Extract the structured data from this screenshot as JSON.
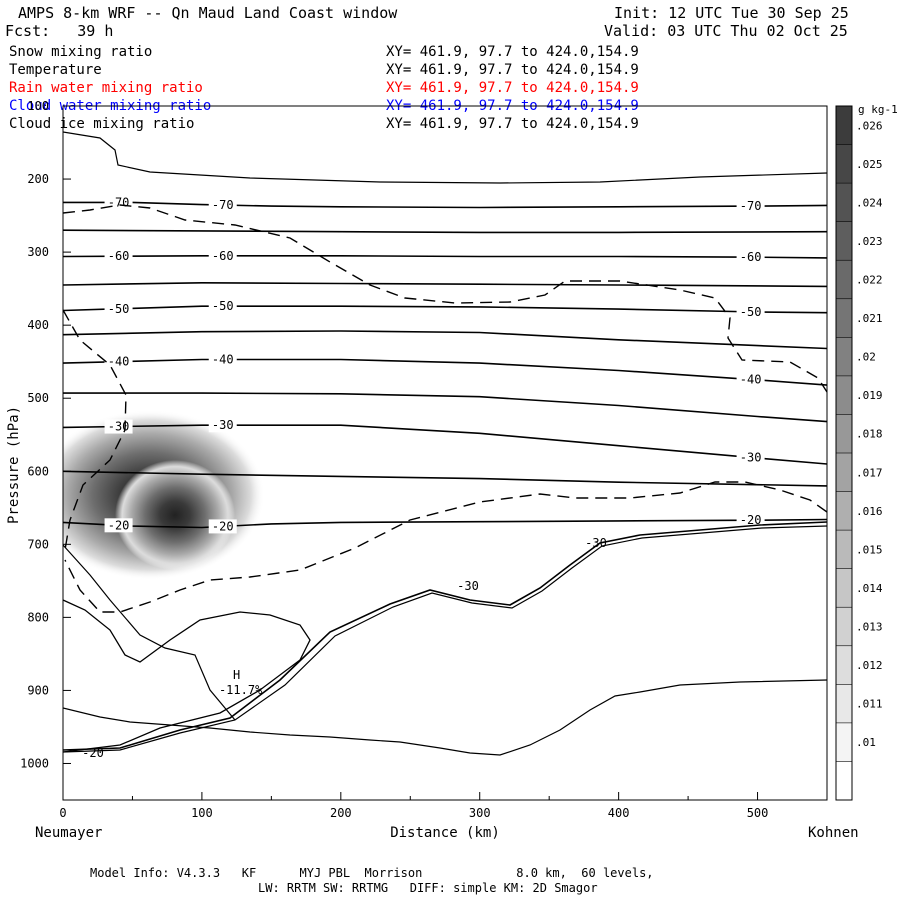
{
  "header": {
    "title": "AMPS 8-km WRF -- Qn Maud Land Coast window",
    "init": "Init: 12 UTC Tue 30 Sep 25",
    "forecast": "Fcst:   39 h",
    "valid": "Valid: 03 UTC Thu 02 Oct 25"
  },
  "fields": [
    {
      "name": "Snow mixing ratio",
      "range": "XY= 461.9, 97.7 to 424.0,154.9",
      "color": "#000000"
    },
    {
      "name": "Temperature",
      "range": "XY= 461.9, 97.7 to 424.0,154.9",
      "color": "#000000"
    },
    {
      "name": "Rain water mixing ratio",
      "range": "XY= 461.9, 97.7 to 424.0,154.9",
      "color": "#ff0000"
    },
    {
      "name": "Cloud water mixing ratio",
      "range": "XY= 461.9, 97.7 to 424.0,154.9",
      "color": "#0000ff"
    },
    {
      "name": "Cloud ice mixing ratio",
      "range": "XY= 461.9, 97.7 to 424.0,154.9",
      "color": "#000000"
    }
  ],
  "footer": {
    "line1": "Model Info: V4.3.3   KF      MYJ PBL  Morrison             8.0 km,  60 levels,",
    "line2": "LW: RRTM SW: RRTMG   DIFF: simple KM: 2D Smagor"
  },
  "chart_data": {
    "type": "contour",
    "xlabel": "Distance (km)",
    "ylabel": "Pressure (hPa)",
    "xlim": [
      0,
      550
    ],
    "ylim": [
      1050,
      100
    ],
    "x_ticks": [
      0,
      100,
      200,
      300,
      400,
      500
    ],
    "y_ticks": [
      100,
      200,
      300,
      400,
      500,
      600,
      700,
      800,
      900,
      1000
    ],
    "left_endpoint": "Neumayer",
    "right_endpoint": "Kohnen",
    "temperature_contours": [
      {
        "label": "-70",
        "points": [
          [
            0,
            232
          ],
          [
            50,
            232
          ],
          [
            100,
            235
          ],
          [
            150,
            237
          ],
          [
            200,
            238
          ],
          [
            300,
            239
          ],
          [
            400,
            238
          ],
          [
            500,
            237
          ],
          [
            550,
            236
          ]
        ]
      },
      {
        "label": "",
        "points": [
          [
            0,
            270
          ],
          [
            100,
            271
          ],
          [
            200,
            272
          ],
          [
            300,
            273
          ],
          [
            400,
            273
          ],
          [
            550,
            272
          ]
        ]
      },
      {
        "label": "-60",
        "points": [
          [
            0,
            306
          ],
          [
            100,
            305
          ],
          [
            200,
            305
          ],
          [
            300,
            306
          ],
          [
            400,
            306
          ],
          [
            500,
            307
          ],
          [
            550,
            308
          ]
        ]
      },
      {
        "label": "",
        "points": [
          [
            0,
            345
          ],
          [
            100,
            342
          ],
          [
            200,
            343
          ],
          [
            300,
            344
          ],
          [
            400,
            345
          ],
          [
            550,
            347
          ]
        ]
      },
      {
        "label": "-50",
        "points": [
          [
            0,
            380
          ],
          [
            100,
            374
          ],
          [
            200,
            374
          ],
          [
            300,
            375
          ],
          [
            400,
            378
          ],
          [
            500,
            382
          ],
          [
            550,
            383
          ]
        ]
      },
      {
        "label": "",
        "points": [
          [
            0,
            413
          ],
          [
            100,
            409
          ],
          [
            200,
            408
          ],
          [
            300,
            410
          ],
          [
            400,
            420
          ],
          [
            500,
            428
          ],
          [
            550,
            432
          ]
        ]
      },
      {
        "label": "-40",
        "points": [
          [
            0,
            452
          ],
          [
            100,
            447
          ],
          [
            200,
            447
          ],
          [
            300,
            452
          ],
          [
            400,
            462
          ],
          [
            500,
            475
          ],
          [
            550,
            482
          ]
        ]
      },
      {
        "label": "",
        "points": [
          [
            0,
            493
          ],
          [
            100,
            493
          ],
          [
            200,
            494
          ],
          [
            300,
            498
          ],
          [
            400,
            510
          ],
          [
            500,
            525
          ],
          [
            550,
            532
          ]
        ]
      },
      {
        "label": "-30",
        "points": [
          [
            0,
            540
          ],
          [
            100,
            537
          ],
          [
            200,
            537
          ],
          [
            300,
            548
          ],
          [
            400,
            565
          ],
          [
            500,
            582
          ],
          [
            550,
            590
          ]
        ]
      },
      {
        "label": "",
        "points": [
          [
            0,
            600
          ],
          [
            100,
            604
          ],
          [
            200,
            607
          ],
          [
            300,
            610
          ],
          [
            400,
            615
          ],
          [
            550,
            620
          ]
        ]
      },
      {
        "label": "-20",
        "points": [
          [
            0,
            670
          ],
          [
            50,
            675
          ],
          [
            100,
            677
          ],
          [
            150,
            672
          ],
          [
            200,
            670
          ],
          [
            300,
            669
          ],
          [
            400,
            668
          ],
          [
            500,
            667
          ],
          [
            550,
            666
          ]
        ]
      }
    ],
    "ice_contour_label": "-30",
    "max_marker": {
      "label": "H",
      "value": "-11.7%",
      "x": 125,
      "p": 895
    },
    "surface_label": "-20",
    "snow_max_location": {
      "x": 80,
      "p": 680
    },
    "colorbar": {
      "units": "g kg-1",
      "ticks": [
        ".026",
        ".025",
        ".024",
        ".023",
        ".022",
        ".021",
        ".02",
        ".019",
        ".018",
        ".017",
        ".016",
        ".015",
        ".014",
        ".013",
        ".012",
        ".011",
        ".01"
      ]
    }
  }
}
